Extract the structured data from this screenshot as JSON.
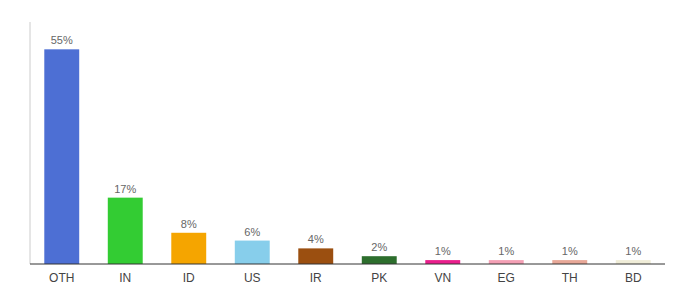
{
  "chart_data": {
    "type": "bar",
    "categories": [
      "OTH",
      "IN",
      "ID",
      "US",
      "IR",
      "PK",
      "VN",
      "EG",
      "TH",
      "BD"
    ],
    "values": [
      55,
      17,
      8,
      6,
      4,
      2,
      1,
      1,
      1,
      1
    ],
    "value_labels": [
      "55%",
      "17%",
      "8%",
      "6%",
      "4%",
      "2%",
      "1%",
      "1%",
      "1%",
      "1%"
    ],
    "colors": [
      "#4d6fd4",
      "#33cc33",
      "#f5a500",
      "#87ceeb",
      "#9b4f10",
      "#2d6e2d",
      "#e91e8c",
      "#f4a0b5",
      "#e8a898",
      "#f0edd8"
    ],
    "ylim": [
      0,
      62
    ],
    "data_labels": true,
    "tick_labels": "x",
    "grid": false
  }
}
